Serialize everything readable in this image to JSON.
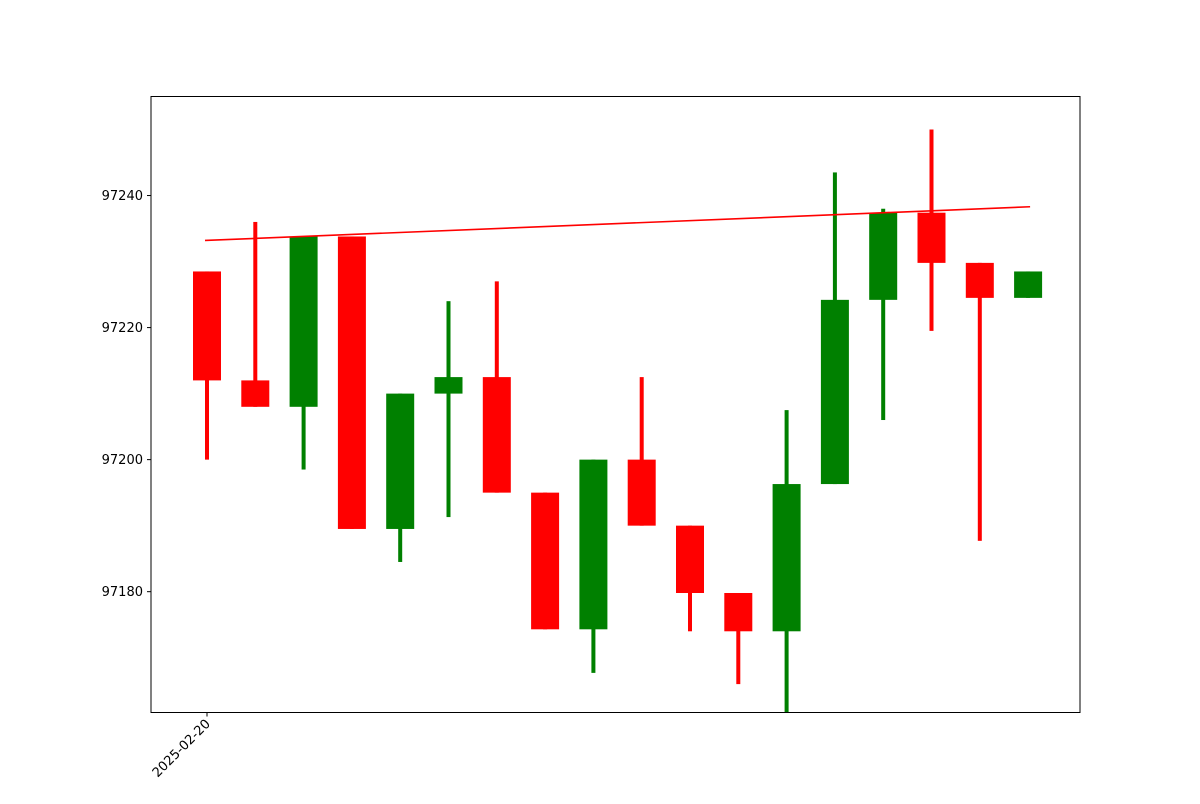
{
  "chart_data": {
    "type": "candlestick",
    "title": "",
    "xlabel": "",
    "ylabel": "",
    "x_tick_labels": [
      "2025-02-20"
    ],
    "y_ticks": [
      97180,
      97200,
      97220,
      97240
    ],
    "ylim": [
      97161.7,
      97255.0
    ],
    "grid": false,
    "colors": {
      "up": "#008000",
      "down": "#ff0000",
      "trendline": "#ff0000",
      "axes": "#000000"
    },
    "candles": [
      {
        "open": 97228.5,
        "high": 97228.5,
        "low": 97200.0,
        "close": 97212.0
      },
      {
        "open": 97212.0,
        "high": 97236.0,
        "low": 97208.0,
        "close": 97208.0
      },
      {
        "open": 97208.0,
        "high": 97233.8,
        "low": 97198.5,
        "close": 97233.8
      },
      {
        "open": 97233.8,
        "high": 97233.8,
        "low": 97189.5,
        "close": 97189.5
      },
      {
        "open": 97189.5,
        "high": 97210.0,
        "low": 97184.5,
        "close": 97210.0
      },
      {
        "open": 97210.0,
        "high": 97224.0,
        "low": 97191.3,
        "close": 97212.5
      },
      {
        "open": 97212.5,
        "high": 97227.0,
        "low": 97195.0,
        "close": 97195.0
      },
      {
        "open": 97195.0,
        "high": 97195.0,
        "low": 97174.3,
        "close": 97174.3
      },
      {
        "open": 97174.3,
        "high": 97200.0,
        "low": 97167.7,
        "close": 97200.0
      },
      {
        "open": 97200.0,
        "high": 97212.5,
        "low": 97190.0,
        "close": 97190.0
      },
      {
        "open": 97190.0,
        "high": 97190.0,
        "low": 97174.0,
        "close": 97179.8
      },
      {
        "open": 97179.8,
        "high": 97179.8,
        "low": 97166.0,
        "close": 97174.0
      },
      {
        "open": 97174.0,
        "high": 97207.5,
        "low": 97161.7,
        "close": 97196.3
      },
      {
        "open": 97196.3,
        "high": 97243.5,
        "low": 97196.3,
        "close": 97224.2
      },
      {
        "open": 97224.2,
        "high": 97238.0,
        "low": 97206.0,
        "close": 97237.4
      },
      {
        "open": 97237.4,
        "high": 97250.0,
        "low": 97219.5,
        "close": 97229.8
      },
      {
        "open": 97229.8,
        "high": 97229.8,
        "low": 97187.7,
        "close": 97224.5
      },
      {
        "open": 97224.5,
        "high": 97228.5,
        "low": 97224.5,
        "close": 97228.5
      }
    ],
    "trendline": {
      "start": 97233.2,
      "end": 97238.3
    }
  }
}
